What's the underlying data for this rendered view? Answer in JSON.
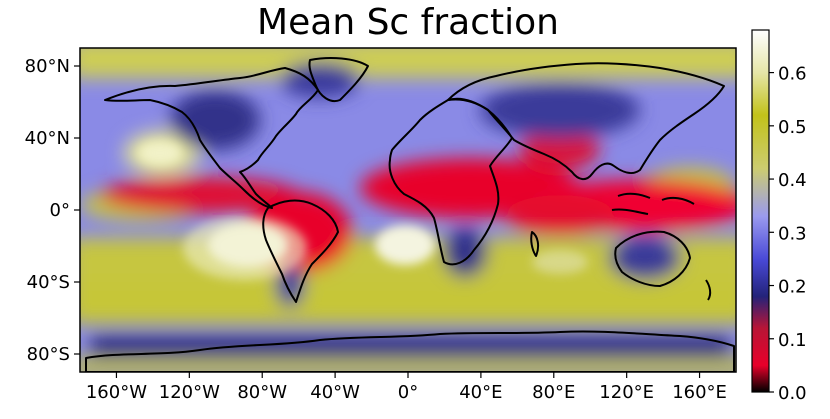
{
  "title": "Mean Sc fraction",
  "map": {
    "projection": "PlateCarree",
    "extent_lon": [
      -180,
      180
    ],
    "extent_lat": [
      -90,
      90
    ],
    "coastlines": true,
    "x_ticks": [
      {
        "lon": -160,
        "label": "160°W"
      },
      {
        "lon": -120,
        "label": "120°W"
      },
      {
        "lon": -80,
        "label": "80°W"
      },
      {
        "lon": -40,
        "label": "40°W"
      },
      {
        "lon": 0,
        "label": "0°"
      },
      {
        "lon": 40,
        "label": "40°E"
      },
      {
        "lon": 80,
        "label": "80°E"
      },
      {
        "lon": 120,
        "label": "120°E"
      },
      {
        "lon": 160,
        "label": "160°E"
      }
    ],
    "y_ticks": [
      {
        "lat": 80,
        "label": "80°N"
      },
      {
        "lat": 40,
        "label": "40°N"
      },
      {
        "lat": 0,
        "label": "0°"
      },
      {
        "lat": -40,
        "label": "40°S"
      },
      {
        "lat": -80,
        "label": "80°S"
      }
    ]
  },
  "colorbar": {
    "colormap": "gist_stern-like (black-red-blue-yellow-white)",
    "range": [
      0.0,
      0.68
    ],
    "stops": [
      {
        "value": 0.0,
        "color": "#000000"
      },
      {
        "value": 0.05,
        "color": "#e8002a"
      },
      {
        "value": 0.12,
        "color": "#b81536"
      },
      {
        "value": 0.18,
        "color": "#23237a"
      },
      {
        "value": 0.25,
        "color": "#4a4ad8"
      },
      {
        "value": 0.33,
        "color": "#9a9aee"
      },
      {
        "value": 0.42,
        "color": "#cccc70"
      },
      {
        "value": 0.52,
        "color": "#c2c21a"
      },
      {
        "value": 0.6,
        "color": "#e6e6a8"
      },
      {
        "value": 0.68,
        "color": "#ffffff"
      }
    ],
    "ticks": [
      {
        "value": 0.0,
        "label": "0.0"
      },
      {
        "value": 0.1,
        "label": "0.1"
      },
      {
        "value": 0.2,
        "label": "0.2"
      },
      {
        "value": 0.3,
        "label": "0.3"
      },
      {
        "value": 0.4,
        "label": "0.4"
      },
      {
        "value": 0.5,
        "label": "0.5"
      },
      {
        "value": 0.6,
        "label": "0.6"
      }
    ]
  }
}
